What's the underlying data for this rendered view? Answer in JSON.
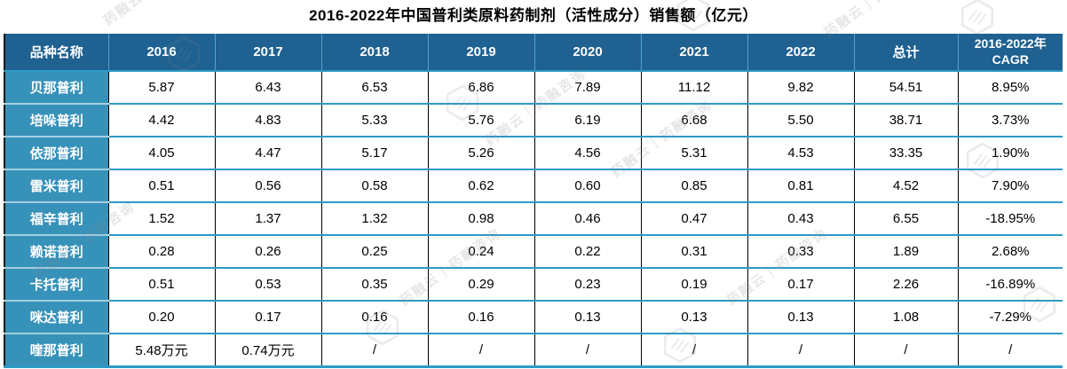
{
  "title": "2016-2022年中国普利类原料药制剂（活性成分）销售额（亿元）",
  "colors": {
    "header_bg": "#1F6191",
    "first_col_bg": "#3792BA",
    "divider": "#2E9AC6",
    "cell_border": "#000000",
    "header_text": "#FFFFFF",
    "body_text": "#000000"
  },
  "table": {
    "headers": [
      "品种名称",
      "2016",
      "2017",
      "2018",
      "2019",
      "2020",
      "2021",
      "2022",
      "总计",
      "2016-2022年\nCAGR"
    ],
    "rows": [
      {
        "name": "贝那普利",
        "values": [
          "5.87",
          "6.43",
          "6.53",
          "6.86",
          "7.89",
          "11.12",
          "9.82",
          "54.51",
          "8.95%"
        ]
      },
      {
        "name": "培哚普利",
        "values": [
          "4.42",
          "4.83",
          "5.33",
          "5.76",
          "6.19",
          "6.68",
          "5.50",
          "38.71",
          "3.73%"
        ]
      },
      {
        "name": "依那普利",
        "values": [
          "4.05",
          "4.47",
          "5.17",
          "5.26",
          "4.56",
          "5.31",
          "4.53",
          "33.35",
          "1.90%"
        ]
      },
      {
        "name": "雷米普利",
        "values": [
          "0.51",
          "0.56",
          "0.58",
          "0.62",
          "0.60",
          "0.85",
          "0.81",
          "4.52",
          "7.90%"
        ]
      },
      {
        "name": "福辛普利",
        "values": [
          "1.52",
          "1.37",
          "1.32",
          "0.98",
          "0.46",
          "0.47",
          "0.43",
          "6.55",
          "-18.95%"
        ]
      },
      {
        "name": "赖诺普利",
        "values": [
          "0.28",
          "0.26",
          "0.25",
          "0.24",
          "0.22",
          "0.31",
          "0.33",
          "1.89",
          "2.68%"
        ]
      },
      {
        "name": "卡托普利",
        "values": [
          "0.51",
          "0.53",
          "0.35",
          "0.29",
          "0.23",
          "0.19",
          "0.17",
          "2.26",
          "-16.89%"
        ]
      },
      {
        "name": "咪达普利",
        "values": [
          "0.20",
          "0.17",
          "0.16",
          "0.16",
          "0.13",
          "0.13",
          "0.13",
          "1.08",
          "-7.29%"
        ]
      },
      {
        "name": "喹那普利",
        "values": [
          "5.48万元",
          "0.74万元",
          "/",
          "/",
          "/",
          "/",
          "/",
          "/",
          "/"
        ]
      }
    ]
  },
  "watermark": {
    "text": "药融云｜药融咨询"
  }
}
